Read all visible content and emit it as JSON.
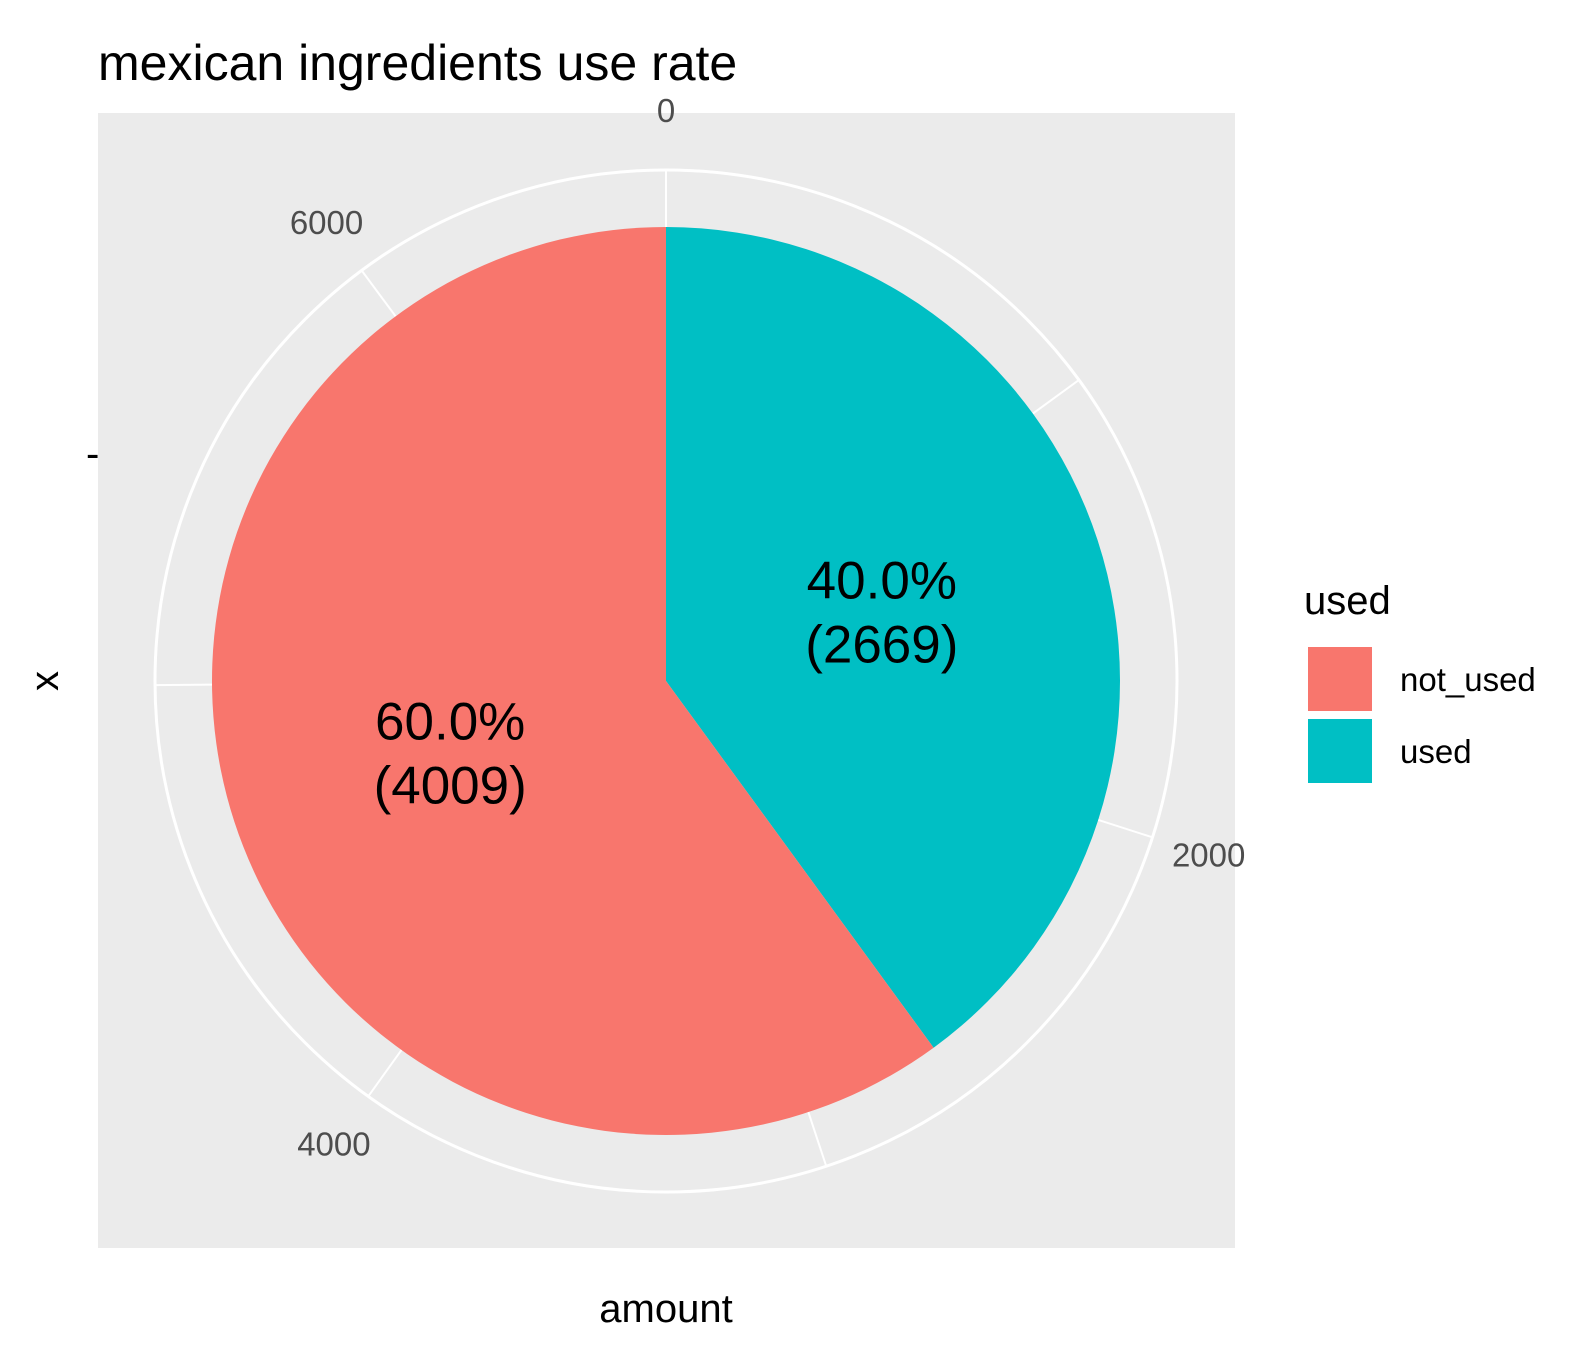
{
  "chart_data": {
    "type": "pie",
    "title": "mexican ingredients use rate",
    "xlabel": "amount",
    "ylabel": "x",
    "y_tick_label": "-",
    "angular_axis": {
      "ticks": [
        0,
        2000,
        4000,
        6000
      ],
      "tick_labels": [
        "0",
        "2000",
        "4000",
        "6000"
      ],
      "total": 6678
    },
    "slices": [
      {
        "category": "used",
        "value": 2669,
        "percent_label": "40.0%",
        "count_label": "(2669)",
        "color": "#00BFC4"
      },
      {
        "category": "not_used",
        "value": 4009,
        "percent_label": "60.0%",
        "count_label": "(4009)",
        "color": "#F8766D"
      }
    ],
    "legend": {
      "title": "used",
      "position": "right",
      "entries": [
        {
          "label": "not_used",
          "color": "#F8766D"
        },
        {
          "label": "used",
          "color": "#00BFC4"
        }
      ]
    },
    "panel_background": "#EBEBEB",
    "grid_color": "#FFFFFF",
    "grid": true
  }
}
